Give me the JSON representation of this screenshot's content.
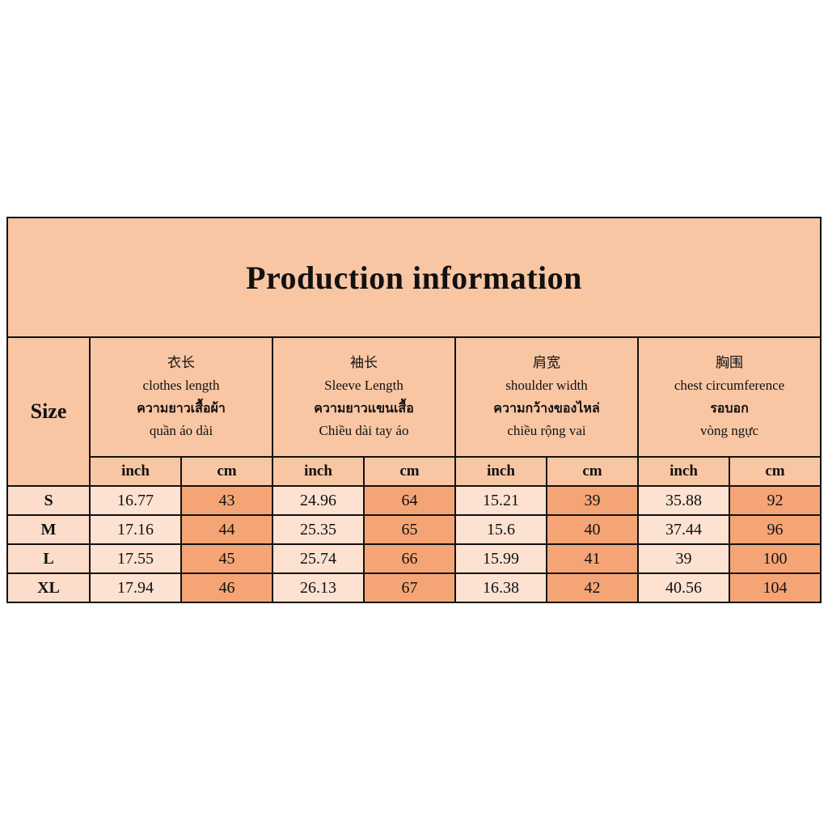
{
  "title": "Production information",
  "size_header": "Size",
  "groups": [
    {
      "zh": "衣长",
      "en": "clothes length",
      "th": "ความยาวเสื้อผ้า",
      "vi": "quần áo dài"
    },
    {
      "zh": "袖长",
      "en": "Sleeve Length",
      "th": "ความยาวแขนเสื้อ",
      "vi": "Chiều dài tay áo"
    },
    {
      "zh": "肩宽",
      "en": "shoulder width",
      "th": "ความกว้างของไหล่",
      "vi": "chiều rộng vai"
    },
    {
      "zh": "胸围",
      "en": "chest circumference",
      "th": "รอบอก",
      "vi": "vòng ngực"
    }
  ],
  "units": [
    "inch",
    "cm",
    "inch",
    "cm",
    "inch",
    "cm",
    "inch",
    "cm"
  ],
  "rows": [
    [
      "S",
      16.77,
      43,
      24.96,
      64,
      15.21,
      39,
      35.88,
      92
    ],
    [
      "M",
      17.16,
      44,
      25.35,
      65,
      15.6,
      40,
      37.44,
      96
    ],
    [
      "L",
      17.55,
      45,
      25.74,
      66,
      15.99,
      41,
      39,
      100
    ],
    [
      "XL",
      17.94,
      46,
      26.13,
      67,
      16.38,
      42,
      40.56,
      104
    ]
  ]
}
